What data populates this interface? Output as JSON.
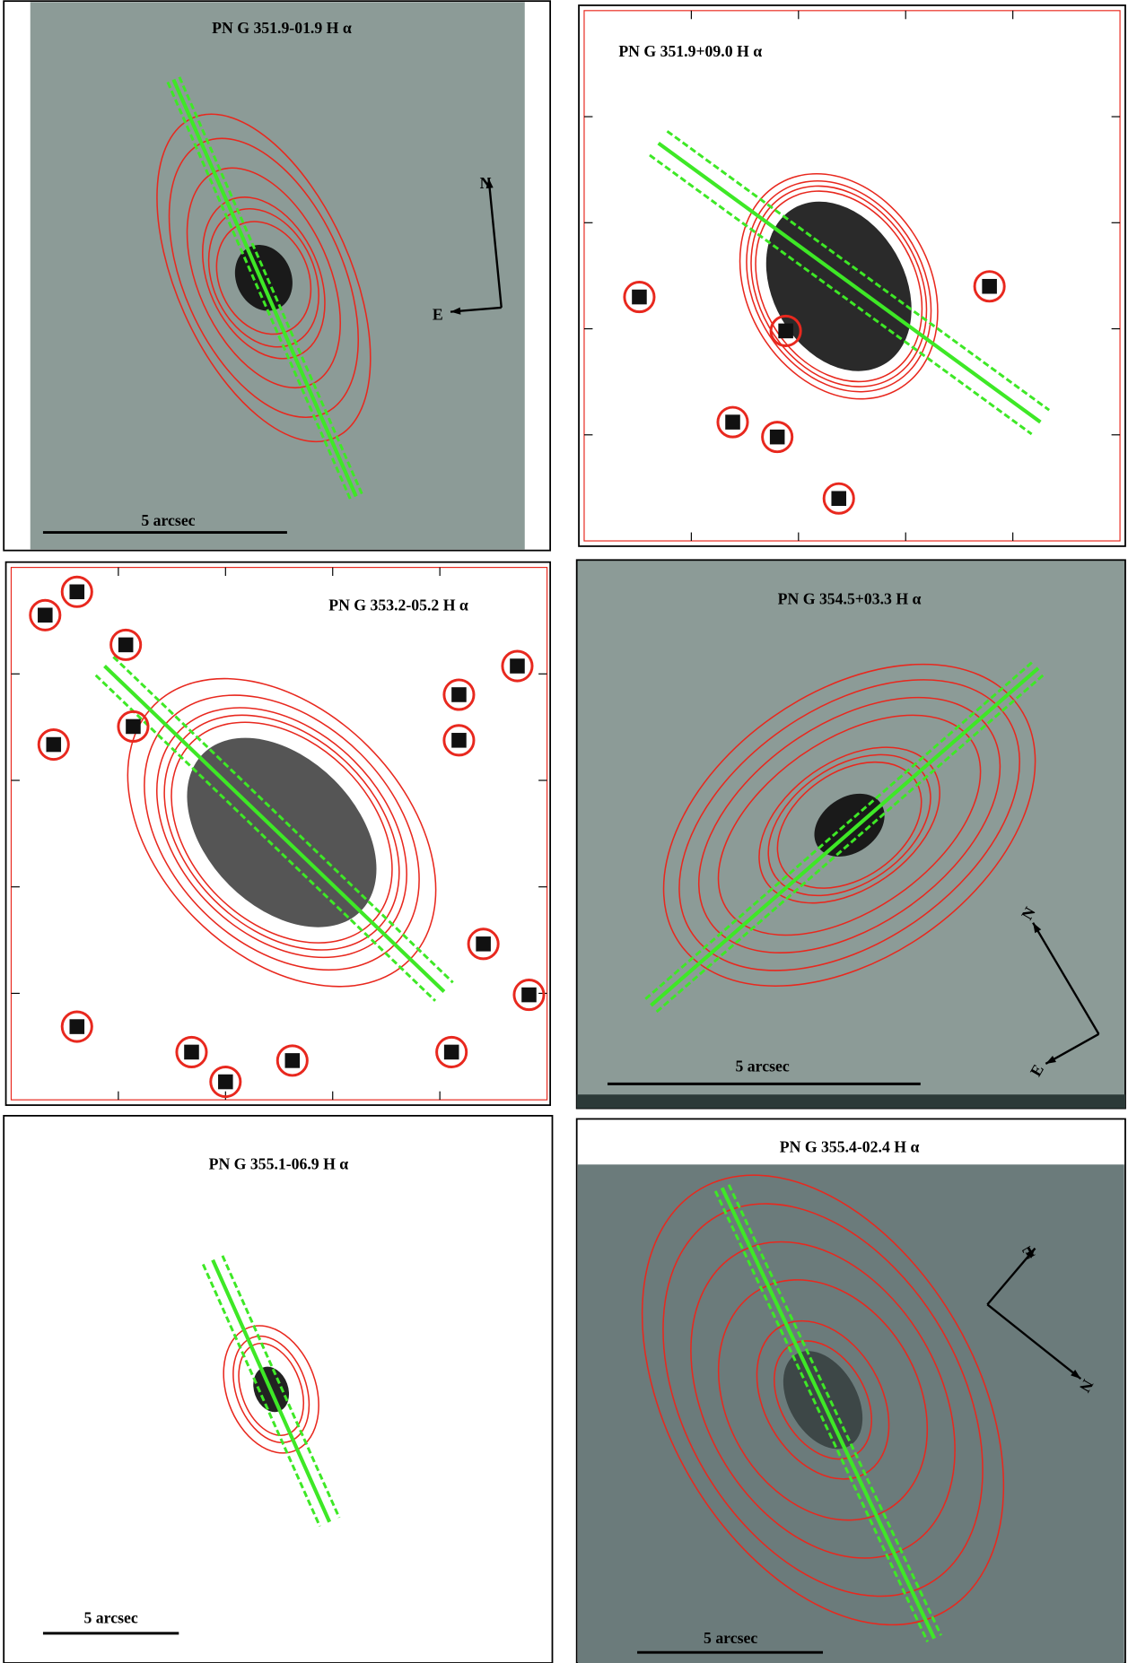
{
  "panels": [
    {
      "title": "PN G 351.9-01.9 H α",
      "scale_label": "5 arcsec",
      "compass": {
        "north": "N",
        "east": "E"
      }
    },
    {
      "title": "PN G 351.9+09.0 H α"
    },
    {
      "title": "PN G 353.2-05.2 H α"
    },
    {
      "title": "PN G 354.5+03.3 H α",
      "scale_label": "5 arcsec",
      "compass": {
        "north": "N",
        "east": "E"
      }
    },
    {
      "title": "PN G 355.1-06.9 H α",
      "scale_label": "5 arcsec"
    },
    {
      "title": "PN G 355.4-02.4 H α",
      "scale_label": "5 arcsec",
      "compass": {
        "north": "N",
        "east": "E"
      }
    }
  ]
}
